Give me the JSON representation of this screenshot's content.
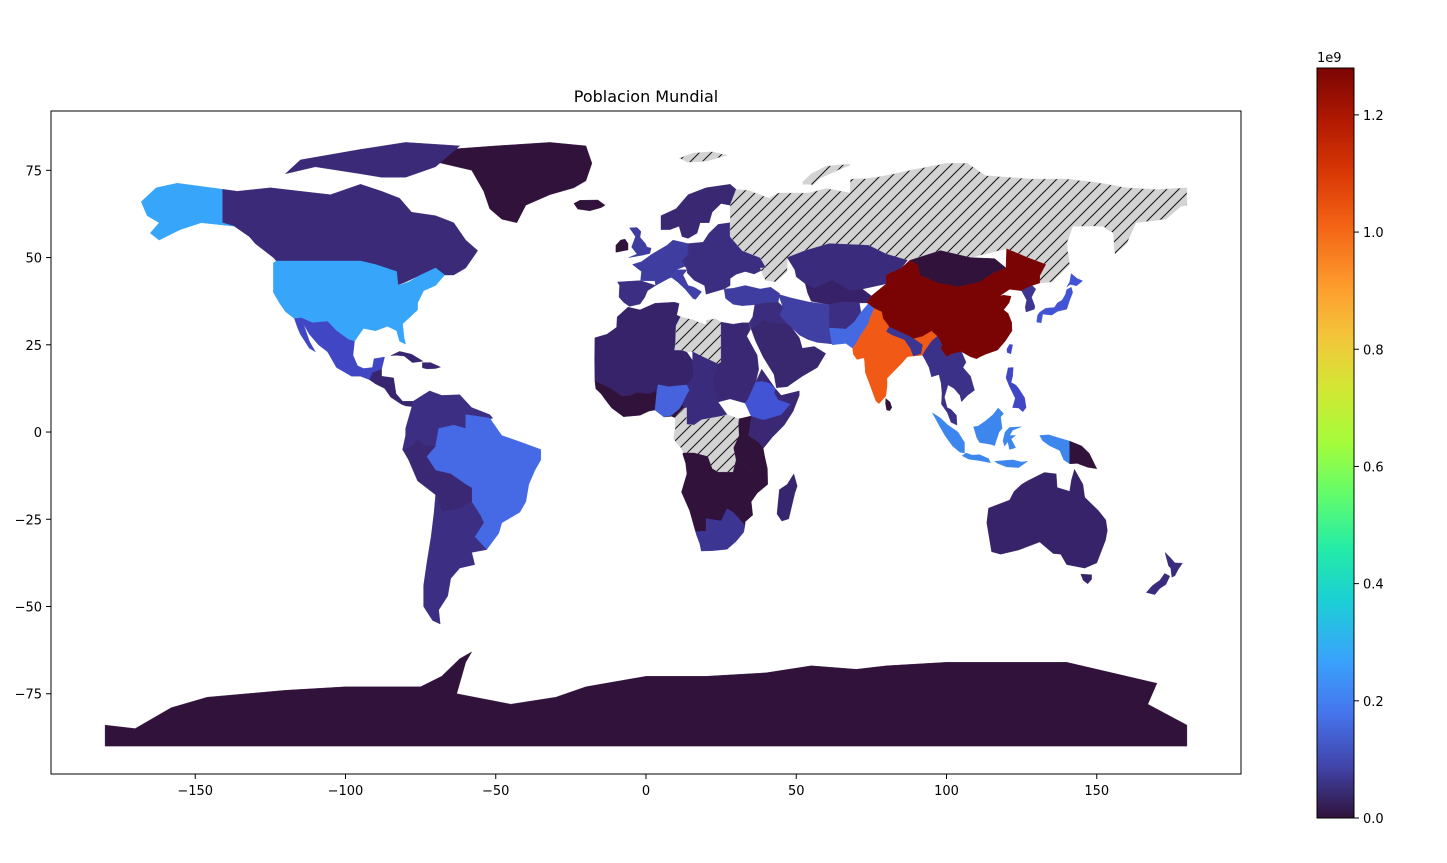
{
  "chart_data": {
    "type": "choropleth",
    "title": "Poblacion Mundial",
    "x": {
      "range": [
        -198,
        198
      ],
      "ticks": [
        -150,
        -100,
        -50,
        0,
        50,
        100,
        150
      ],
      "tick_labels": [
        "−150",
        "−100",
        "−50",
        "0",
        "50",
        "100",
        "150"
      ]
    },
    "y": {
      "range": [
        -98,
        92
      ],
      "ticks": [
        75,
        50,
        25,
        0,
        -25,
        -50,
        -75
      ],
      "tick_labels": [
        "75",
        "50",
        "25",
        "0",
        "−25",
        "−50",
        "−75"
      ]
    },
    "colorbar": {
      "colormap": "turbo",
      "min": 0,
      "max": 1.28,
      "offset_label": "1e9",
      "ticks": [
        0,
        0.2,
        0.4,
        0.6,
        0.8,
        1.0,
        1.2
      ],
      "tick_labels": [
        "0.0",
        "0.2",
        "0.4",
        "0.6",
        "0.8",
        "1.0",
        "1.2"
      ]
    },
    "missing_color": "#d3d3d3",
    "missing_hatch": "//",
    "regions": [
      {
        "region": "Antarctica",
        "value": 4e-06,
        "color": "#30123b"
      },
      {
        "region": "Greenland",
        "value": 6e-05,
        "color": "#30123b"
      },
      {
        "region": "Canada",
        "value": 0.036,
        "color": "#3b2a78"
      },
      {
        "region": "United States",
        "value": 0.327,
        "color": "#36a5fa"
      },
      {
        "region": "Mexico",
        "value": 0.127,
        "color": "#4146c5"
      },
      {
        "region": "Brazil",
        "value": 0.21,
        "color": "#466ae6"
      },
      {
        "region": "Argentina",
        "value": 0.045,
        "color": "#3c2f83"
      },
      {
        "region": "Russia",
        "value": null,
        "color": "#d3d3d3"
      },
      {
        "region": "China",
        "value": 1.28,
        "color": "#7a0403"
      },
      {
        "region": "India",
        "value": 1.05,
        "color": "#f05a16"
      },
      {
        "region": "Indonesia",
        "value": 0.27,
        "color": "#3c86ee"
      },
      {
        "region": "Nigeria",
        "value": 0.19,
        "color": "#4663dd"
      },
      {
        "region": "Pakistan",
        "value": 0.21,
        "color": "#4469e3"
      },
      {
        "region": "Australia",
        "value": 0.025,
        "color": "#37236a"
      },
      {
        "region": "Libya",
        "value": null,
        "color": "#d3d3d3"
      },
      {
        "region": "Dem. Rep. Congo",
        "value": null,
        "color": "#d3d3d3"
      }
    ]
  }
}
